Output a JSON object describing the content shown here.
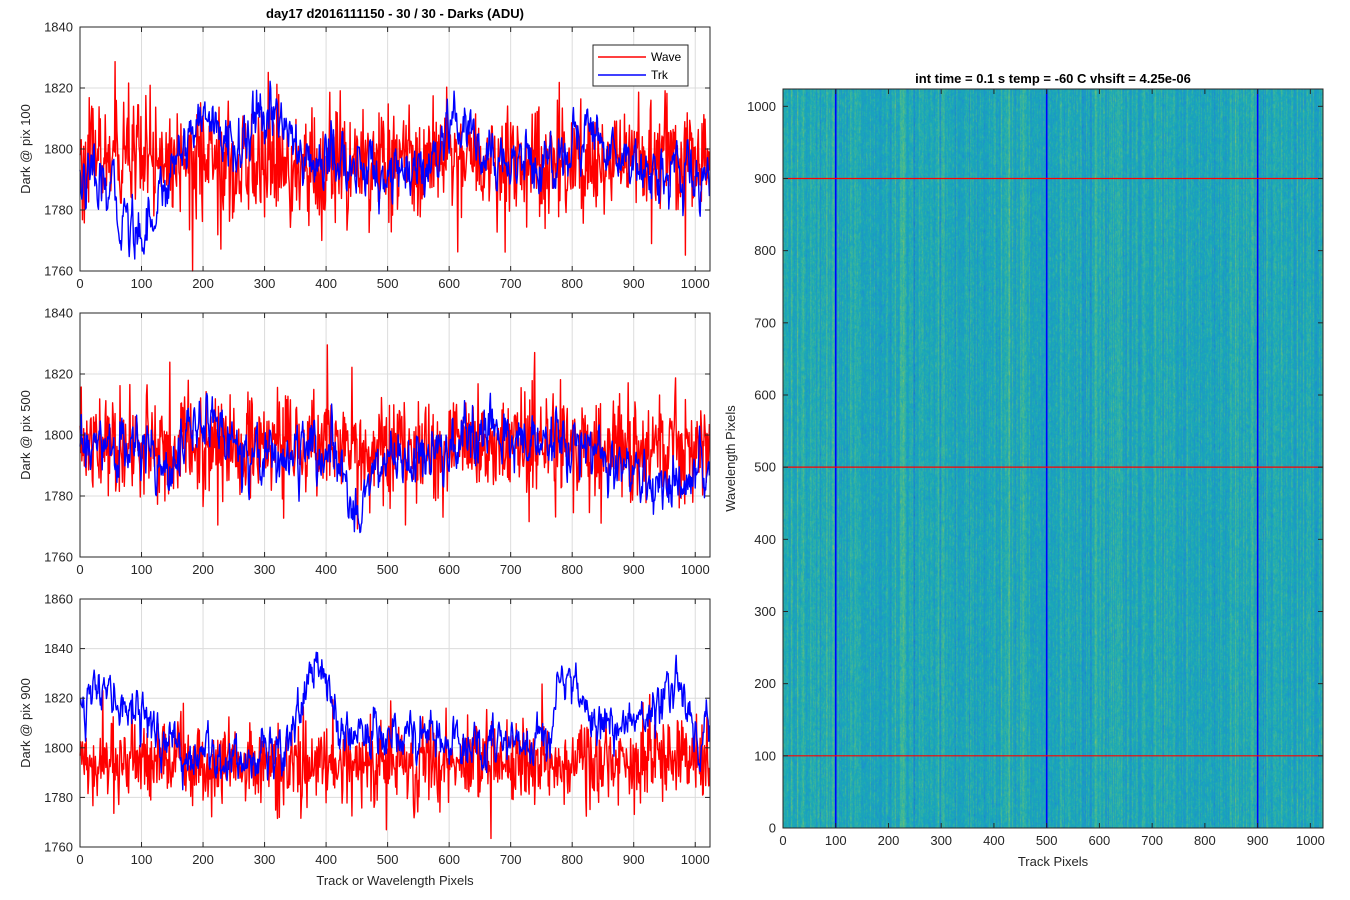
{
  "figure_title": "day17 d2016111150 - 30 / 30 - Darks (ADU)",
  "colors": {
    "wave": "#ff0000",
    "trk": "#0000ff",
    "grid": "#d9d9d9",
    "axes": "#262626"
  },
  "chart_data": [
    {
      "type": "line",
      "ylabel": "Dark @ pix 100",
      "xlim": [
        0,
        1024
      ],
      "ylim": [
        1760,
        1840
      ],
      "xticks": [
        0,
        100,
        200,
        300,
        400,
        500,
        600,
        700,
        800,
        900,
        1000
      ],
      "yticks": [
        1760,
        1780,
        1800,
        1820,
        1840
      ],
      "grid": true,
      "legend": {
        "placement": "top-right",
        "entries": [
          "Wave",
          "Trk"
        ]
      },
      "series": [
        {
          "name": "Wave",
          "color": "#ff0000",
          "n": 1024,
          "mean": 1795,
          "noise_sd": 9,
          "trend_keypoints": [
            [
              0,
              1796
            ],
            [
              200,
              1795
            ],
            [
              400,
              1794
            ],
            [
              600,
              1796
            ],
            [
              800,
              1797
            ],
            [
              1023,
              1797
            ]
          ]
        },
        {
          "name": "Trk",
          "color": "#0000ff",
          "n": 1024,
          "mean": 1796,
          "noise_sd": 4,
          "trend_keypoints": [
            [
              0,
              1790
            ],
            [
              50,
              1785
            ],
            [
              90,
              1772
            ],
            [
              130,
              1783
            ],
            [
              160,
              1800
            ],
            [
              200,
              1812
            ],
            [
              240,
              1800
            ],
            [
              300,
              1808
            ],
            [
              320,
              1815
            ],
            [
              360,
              1795
            ],
            [
              420,
              1797
            ],
            [
              450,
              1792
            ],
            [
              500,
              1793
            ],
            [
              560,
              1790
            ],
            [
              620,
              1808
            ],
            [
              660,
              1795
            ],
            [
              720,
              1797
            ],
            [
              760,
              1794
            ],
            [
              820,
              1806
            ],
            [
              860,
              1800
            ],
            [
              900,
              1797
            ],
            [
              960,
              1790
            ],
            [
              1023,
              1790
            ]
          ]
        }
      ]
    },
    {
      "type": "line",
      "ylabel": "Dark @ pix 500",
      "xlim": [
        0,
        1024
      ],
      "ylim": [
        1760,
        1840
      ],
      "xticks": [
        0,
        100,
        200,
        300,
        400,
        500,
        600,
        700,
        800,
        900,
        1000
      ],
      "yticks": [
        1760,
        1780,
        1800,
        1820,
        1840
      ],
      "grid": true,
      "series": [
        {
          "name": "Wave",
          "color": "#ff0000",
          "n": 1024,
          "mean": 1796,
          "noise_sd": 8,
          "trend_keypoints": [
            [
              0,
              1797
            ],
            [
              200,
              1796
            ],
            [
              400,
              1796
            ],
            [
              600,
              1796
            ],
            [
              800,
              1797
            ],
            [
              1023,
              1797
            ]
          ]
        },
        {
          "name": "Trk",
          "color": "#0000ff",
          "n": 1024,
          "mean": 1793,
          "noise_sd": 4,
          "trend_keypoints": [
            [
              0,
              1795
            ],
            [
              100,
              1795
            ],
            [
              150,
              1792
            ],
            [
              200,
              1805
            ],
            [
              260,
              1797
            ],
            [
              320,
              1793
            ],
            [
              400,
              1794
            ],
            [
              450,
              1777
            ],
            [
              500,
              1793
            ],
            [
              560,
              1791
            ],
            [
              620,
              1796
            ],
            [
              700,
              1800
            ],
            [
              760,
              1795
            ],
            [
              820,
              1797
            ],
            [
              870,
              1788
            ],
            [
              920,
              1784
            ],
            [
              980,
              1782
            ],
            [
              1023,
              1787
            ]
          ]
        }
      ]
    },
    {
      "type": "line",
      "ylabel": "Dark @ pix 900",
      "xlabel": "Track or Wavelength Pixels",
      "xlim": [
        0,
        1024
      ],
      "ylim": [
        1760,
        1860
      ],
      "xticks": [
        0,
        100,
        200,
        300,
        400,
        500,
        600,
        700,
        800,
        900,
        1000
      ],
      "yticks": [
        1760,
        1780,
        1800,
        1820,
        1840,
        1860
      ],
      "grid": true,
      "series": [
        {
          "name": "Wave",
          "color": "#ff0000",
          "n": 1024,
          "mean": 1795,
          "noise_sd": 8,
          "trend_keypoints": [
            [
              0,
              1795
            ],
            [
              200,
              1794
            ],
            [
              400,
              1793
            ],
            [
              600,
              1794
            ],
            [
              800,
              1795
            ],
            [
              1023,
              1795
            ]
          ]
        },
        {
          "name": "Trk",
          "color": "#0000ff",
          "n": 1024,
          "mean": 1803,
          "noise_sd": 4,
          "trend_keypoints": [
            [
              0,
              1822
            ],
            [
              40,
              1820
            ],
            [
              100,
              1815
            ],
            [
              140,
              1800
            ],
            [
              200,
              1795
            ],
            [
              280,
              1797
            ],
            [
              330,
              1800
            ],
            [
              390,
              1838
            ],
            [
              420,
              1803
            ],
            [
              480,
              1808
            ],
            [
              560,
              1805
            ],
            [
              630,
              1800
            ],
            [
              700,
              1800
            ],
            [
              760,
              1808
            ],
            [
              790,
              1835
            ],
            [
              830,
              1810
            ],
            [
              880,
              1810
            ],
            [
              940,
              1815
            ],
            [
              970,
              1830
            ],
            [
              1000,
              1805
            ],
            [
              1023,
              1815
            ]
          ]
        }
      ]
    },
    {
      "type": "heatmap",
      "title": "int time = 0.1 s   temp = -60 C   vhsift = 4.25e-06",
      "xlabel": "Track Pixels",
      "ylabel": "Wavelength Pixels",
      "xlim": [
        0,
        1024
      ],
      "ylim": [
        0,
        1024
      ],
      "xticks": [
        0,
        100,
        200,
        300,
        400,
        500,
        600,
        700,
        800,
        900,
        1000
      ],
      "yticks": [
        0,
        100,
        200,
        300,
        400,
        500,
        600,
        700,
        800,
        900,
        1000
      ],
      "colormap": "parula",
      "base_color": "#22a0b8",
      "vertical_lines": {
        "x": [
          100,
          500,
          900
        ],
        "color": "#0000ff"
      },
      "horizontal_lines": {
        "y": [
          100,
          500,
          900
        ],
        "color": "#ff0000"
      }
    }
  ]
}
